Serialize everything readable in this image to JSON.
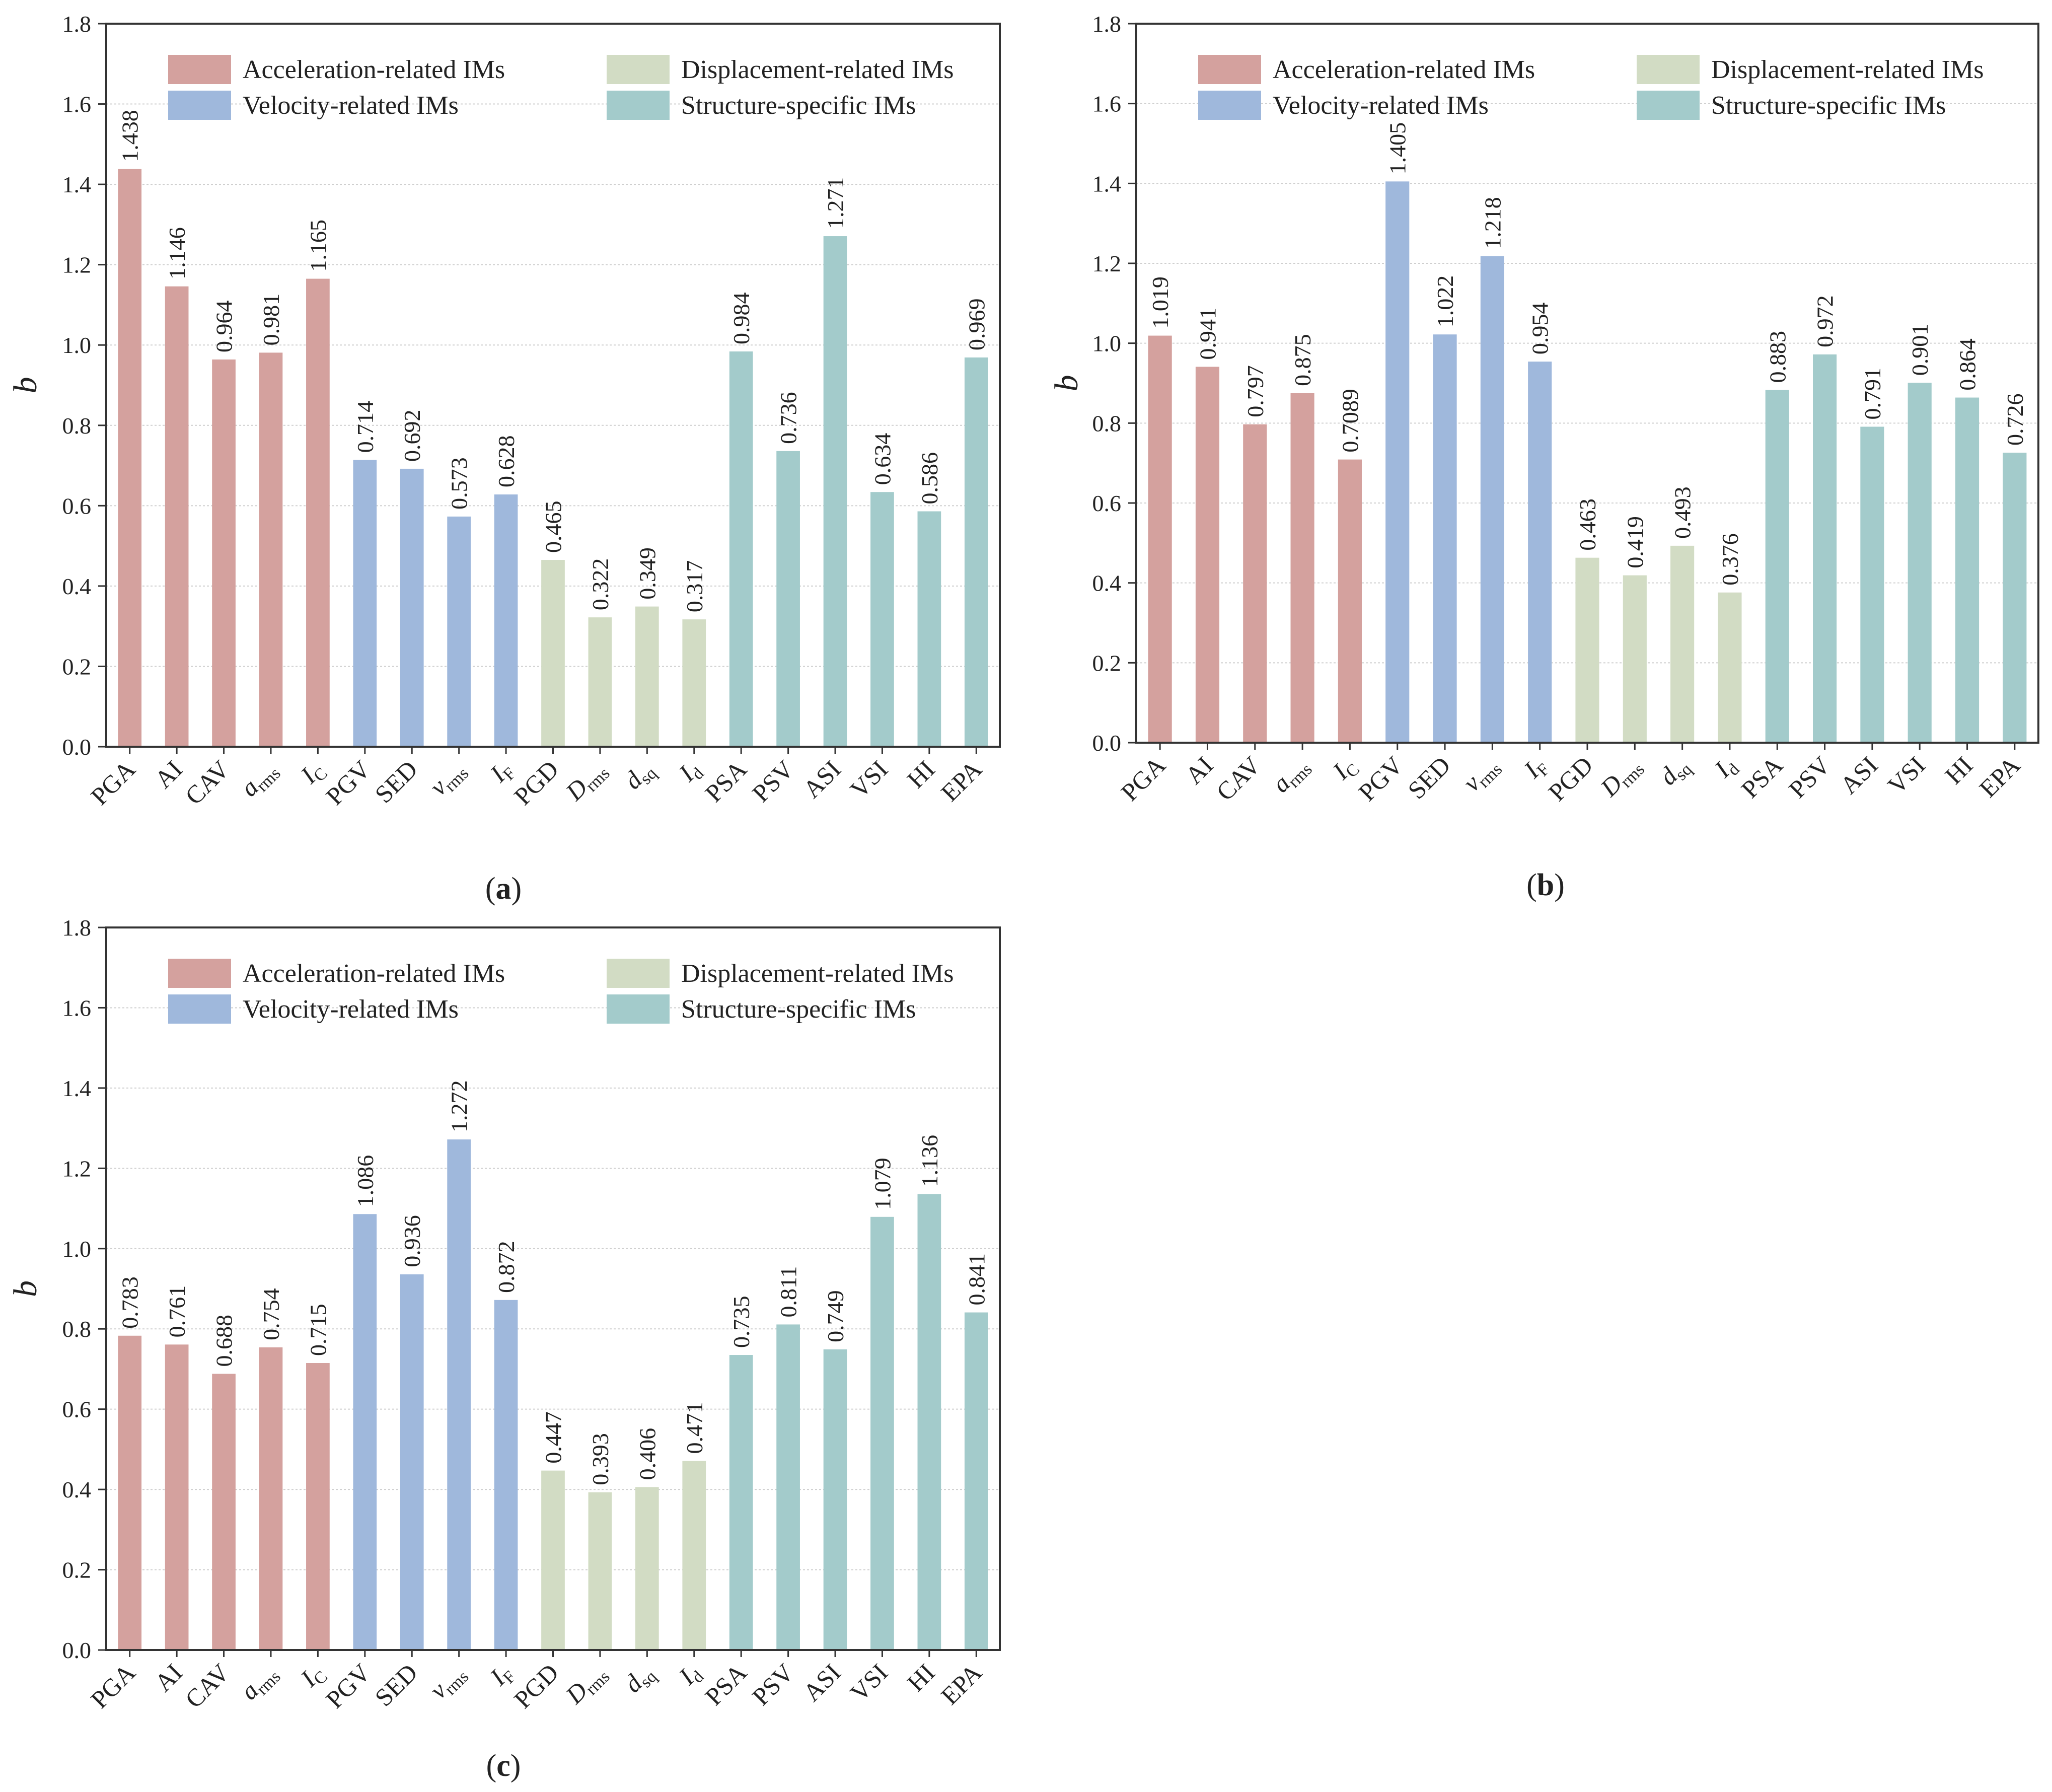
{
  "colors": {
    "acceleration": "#d4a19e",
    "velocity": "#9fb8dc",
    "displacement": "#d2dcc4",
    "structure": "#a3cbcb",
    "grid": "#cfcfcf",
    "axis": "#333333"
  },
  "legend": [
    {
      "group": "acceleration",
      "label": "Acceleration-related IMs"
    },
    {
      "group": "displacement",
      "label": "Displacement-related IMs"
    },
    {
      "group": "velocity",
      "label": "Velocity-related IMs"
    },
    {
      "group": "structure",
      "label": "Structure-specific IMs"
    }
  ],
  "categories": [
    {
      "base": "PGA",
      "sub": "",
      "italic": false,
      "group": "acceleration"
    },
    {
      "base": "AI",
      "sub": "",
      "italic": false,
      "group": "acceleration"
    },
    {
      "base": "CAV",
      "sub": "",
      "italic": false,
      "group": "acceleration"
    },
    {
      "base": "a",
      "sub": "rms",
      "italic": true,
      "group": "acceleration"
    },
    {
      "base": "I",
      "sub": "C",
      "italic": true,
      "group": "acceleration"
    },
    {
      "base": "PGV",
      "sub": "",
      "italic": false,
      "group": "velocity"
    },
    {
      "base": "SED",
      "sub": "",
      "italic": false,
      "group": "velocity"
    },
    {
      "base": "v",
      "sub": "rms",
      "italic": true,
      "group": "velocity"
    },
    {
      "base": "I",
      "sub": "F",
      "italic": true,
      "group": "velocity"
    },
    {
      "base": "PGD",
      "sub": "",
      "italic": false,
      "group": "displacement"
    },
    {
      "base": "D",
      "sub": "rms",
      "italic": true,
      "group": "displacement"
    },
    {
      "base": "d",
      "sub": "sq",
      "italic": true,
      "group": "displacement"
    },
    {
      "base": "I",
      "sub": "d",
      "italic": true,
      "group": "displacement"
    },
    {
      "base": "PSA",
      "sub": "",
      "italic": false,
      "group": "structure"
    },
    {
      "base": "PSV",
      "sub": "",
      "italic": false,
      "group": "structure"
    },
    {
      "base": "ASI",
      "sub": "",
      "italic": false,
      "group": "structure"
    },
    {
      "base": "VSI",
      "sub": "",
      "italic": false,
      "group": "structure"
    },
    {
      "base": "HI",
      "sub": "",
      "italic": false,
      "group": "structure"
    },
    {
      "base": "EPA",
      "sub": "",
      "italic": false,
      "group": "structure"
    }
  ],
  "chart_data": [
    {
      "type": "bar",
      "panel": "a",
      "caption": "(a)",
      "ylabel": "b",
      "xlabel": "",
      "ylim": [
        0,
        1.8
      ],
      "yticks": [
        "0.0",
        "0.2",
        "0.4",
        "0.6",
        "0.8",
        "1.0",
        "1.2",
        "1.4",
        "1.6",
        "1.8"
      ],
      "grid": true,
      "legend_position": "top",
      "values": [
        1.438,
        1.146,
        0.964,
        0.981,
        1.165,
        0.714,
        0.692,
        0.573,
        0.628,
        0.465,
        0.322,
        0.349,
        0.317,
        0.984,
        0.736,
        1.271,
        0.634,
        0.586,
        0.969
      ],
      "labels": [
        "1.438",
        "1.146",
        "0.964",
        "0.981",
        "1.165",
        "0.714",
        "0.692",
        "0.573",
        "0.628",
        "0.465",
        "0.322",
        "0.349",
        "0.317",
        "0.984",
        "0.736",
        "1.271",
        "0.634",
        "0.586",
        "0.969"
      ]
    },
    {
      "type": "bar",
      "panel": "b",
      "caption": "(b)",
      "ylabel": "b",
      "xlabel": "",
      "ylim": [
        0,
        1.8
      ],
      "yticks": [
        "0.0",
        "0.2",
        "0.4",
        "0.6",
        "0.8",
        "1.0",
        "1.2",
        "1.4",
        "1.6",
        "1.8"
      ],
      "grid": true,
      "legend_position": "top",
      "values": [
        1.019,
        0.941,
        0.797,
        0.875,
        0.7089,
        1.405,
        1.022,
        1.218,
        0.954,
        0.463,
        0.419,
        0.493,
        0.376,
        0.883,
        0.972,
        0.791,
        0.901,
        0.864,
        0.726
      ],
      "labels": [
        "1.019",
        "0.941",
        "0.797",
        "0.875",
        "0.7089",
        "1.405",
        "1.022",
        "1.218",
        "0.954",
        "0.463",
        "0.419",
        "0.493",
        "0.376",
        "0.883",
        "0.972",
        "0.791",
        "0.901",
        "0.864",
        "0.726"
      ]
    },
    {
      "type": "bar",
      "panel": "c",
      "caption": "(c)",
      "ylabel": "b",
      "xlabel": "",
      "ylim": [
        0,
        1.8
      ],
      "yticks": [
        "0.0",
        "0.2",
        "0.4",
        "0.6",
        "0.8",
        "1.0",
        "1.2",
        "1.4",
        "1.6",
        "1.8"
      ],
      "grid": true,
      "legend_position": "top",
      "values": [
        0.783,
        0.761,
        0.688,
        0.754,
        0.715,
        1.086,
        0.936,
        1.272,
        0.872,
        0.447,
        0.393,
        0.406,
        0.471,
        0.735,
        0.811,
        0.749,
        1.079,
        1.136,
        0.841
      ],
      "labels": [
        "0.783",
        "0.761",
        "0.688",
        "0.754",
        "0.715",
        "1.086",
        "0.936",
        "1.272",
        "0.872",
        "0.447",
        "0.393",
        "0.406",
        "0.471",
        "0.735",
        "0.811",
        "0.749",
        "1.079",
        "1.136",
        "0.841"
      ]
    }
  ]
}
